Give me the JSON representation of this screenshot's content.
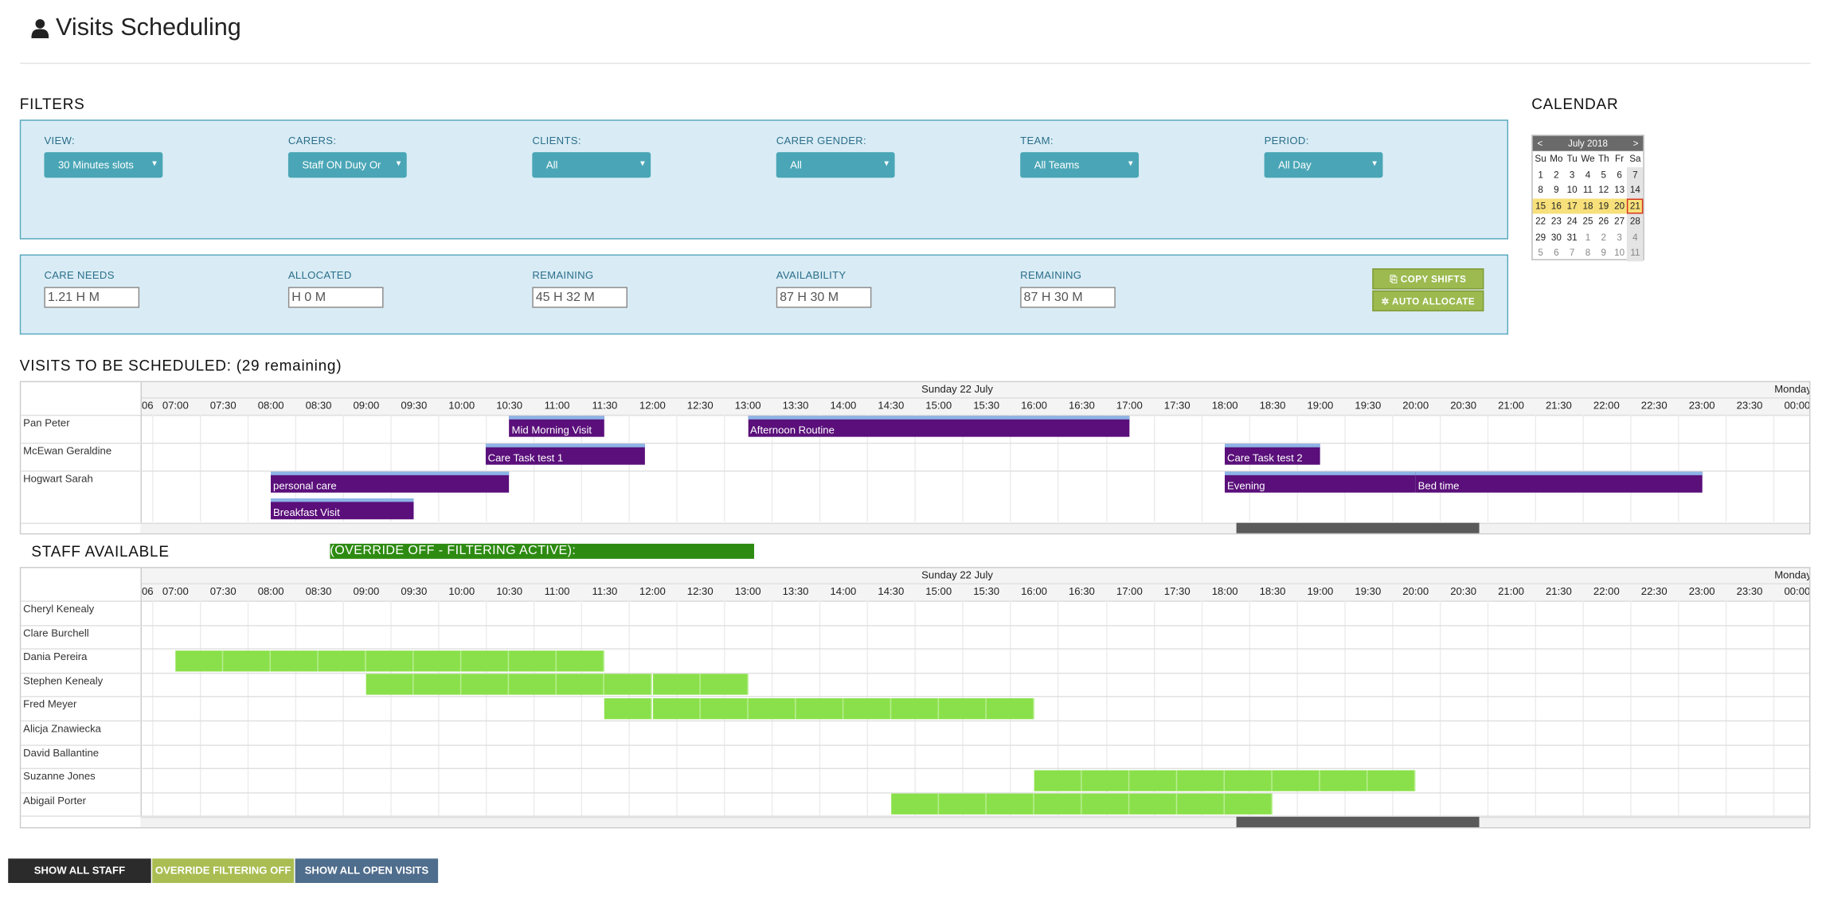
{
  "page": {
    "title": "Visits Scheduling"
  },
  "filters": {
    "heading": "FILTERS",
    "view": {
      "label": "VIEW:",
      "value": "30 Minutes slots"
    },
    "carers": {
      "label": "CARERS:",
      "value": "Staff ON Duty Or"
    },
    "clients": {
      "label": "CLIENTS:",
      "value": "All"
    },
    "gender": {
      "label": "CARER GENDER:",
      "value": "All"
    },
    "team": {
      "label": "TEAM:",
      "value": "All Teams"
    },
    "period": {
      "label": "PERIOD:",
      "value": "All Day"
    }
  },
  "stats": {
    "care_needs": {
      "label": "CARE NEEDS",
      "value": "1.21 H  M"
    },
    "allocated": {
      "label": "ALLOCATED",
      "value": "H 0 M"
    },
    "remaining1": {
      "label": "REMAINING",
      "value": "45 H 32 M"
    },
    "availability": {
      "label": "AVAILABILITY",
      "value": "87 H 30 M"
    },
    "remaining2": {
      "label": "REMAINING",
      "value": "87 H 30 M"
    },
    "copy_shifts": "COPY SHIFTS",
    "auto_allocate": "AUTO ALLOCATE"
  },
  "calendar": {
    "heading": "CALENDAR",
    "month": "July 2018",
    "prev": "<",
    "next": ">",
    "day_headers": [
      "Su",
      "Mo",
      "Tu",
      "We",
      "Th",
      "Fr",
      "Sa"
    ],
    "weeks": [
      [
        "1",
        "2",
        "3",
        "4",
        "5",
        "6",
        "7"
      ],
      [
        "8",
        "9",
        "10",
        "11",
        "12",
        "13",
        "14"
      ],
      [
        "15",
        "16",
        "17",
        "18",
        "19",
        "20",
        "21"
      ],
      [
        "22",
        "23",
        "24",
        "25",
        "26",
        "27",
        "28"
      ],
      [
        "29",
        "30",
        "31",
        "1",
        "2",
        "3",
        "4"
      ],
      [
        "5",
        "6",
        "7",
        "8",
        "9",
        "10",
        "11"
      ]
    ],
    "highlight_week": 2,
    "selected": "21"
  },
  "visits_section": {
    "heading": "VISITS TO BE SCHEDULED: (29 remaining)",
    "day_label": "Sunday 22 July",
    "next_day_label": "Monday",
    "first_partial": "06",
    "times": [
      "07:00",
      "07:30",
      "08:00",
      "08:30",
      "09:00",
      "09:30",
      "10:00",
      "10:30",
      "11:00",
      "11:30",
      "12:00",
      "12:30",
      "13:00",
      "13:30",
      "14:00",
      "14:30",
      "15:00",
      "15:30",
      "16:00",
      "16:30",
      "17:00",
      "17:30",
      "18:00",
      "18:30",
      "19:00",
      "19:30",
      "20:00",
      "20:30",
      "21:00",
      "21:30",
      "22:00",
      "22:30",
      "23:00",
      "23:30",
      "00:00"
    ],
    "clients": [
      "Pan Peter",
      "McEwan Geraldine",
      "Hogwart Sarah"
    ],
    "visits": [
      {
        "label": "Mid Morning Visit",
        "client": 0,
        "start": "10:30",
        "end": "11:30"
      },
      {
        "label": "Afternoon Routine",
        "client": 0,
        "start": "13:00",
        "end": "17:00"
      },
      {
        "label": "Care Task test 1",
        "client": 1,
        "start": "10:15",
        "end": "11:55"
      },
      {
        "label": "Care Task test 2",
        "client": 1,
        "start": "18:00",
        "end": "19:00"
      },
      {
        "label": "personal care",
        "client": 2,
        "start": "08:00",
        "end": "10:30"
      },
      {
        "label": "Evening",
        "client": 2,
        "start": "18:00",
        "end": "20:00"
      },
      {
        "label": "Bed time",
        "client": 2,
        "start": "20:00",
        "end": "23:00"
      },
      {
        "label": "Breakfast Visit",
        "client": 2,
        "start": "08:00",
        "end": "09:30",
        "sub": true
      }
    ]
  },
  "staff_section": {
    "heading": "STAFF AVAILABLE",
    "override_banner": "(OVERRIDE OFF - FILTERING ACTIVE):",
    "staff": [
      "Cheryl Kenealy",
      "Clare Burchell",
      "Dania Pereira",
      "Stephen Kenealy",
      "Fred Meyer",
      "Alicja Znawiecka",
      "David Ballantine",
      "Suzanne Jones",
      "Abigail Porter"
    ],
    "availability": [
      {
        "staff": 2,
        "start": "07:00",
        "end": "11:30"
      },
      {
        "staff": 3,
        "start": "09:00",
        "end": "13:00"
      },
      {
        "staff": 4,
        "start": "11:30",
        "end": "16:00"
      },
      {
        "staff": 7,
        "start": "16:00",
        "end": "20:00"
      },
      {
        "staff": 8,
        "start": "14:30",
        "end": "18:30"
      }
    ]
  },
  "footer": {
    "show_all_staff": "SHOW ALL STAFF",
    "override_filtering": "OVERRIDE FILTERING OFF",
    "show_all_open_visits": "SHOW ALL OPEN VISITS"
  },
  "colors": {
    "visit": "#5a0f7a",
    "available": "#8ae04a",
    "banner": "#2e8b12",
    "panel": "#d9ecf5"
  }
}
